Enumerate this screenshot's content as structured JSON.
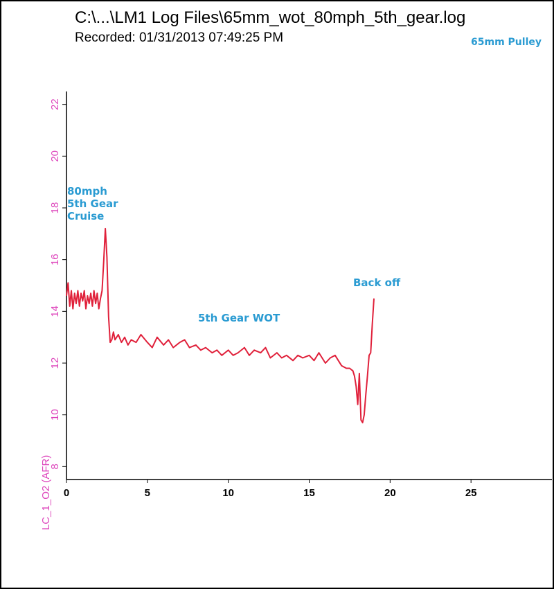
{
  "header": {
    "title": "C:\\...\\LM1 Log Files\\65mm_wot_80mph_5th_gear.log",
    "recorded": "Recorded: 01/31/2013 07:49:25 PM"
  },
  "annotations": {
    "pulley": "65mm Pulley",
    "cruise_line1": "80mph",
    "cruise_line2": "5th Gear",
    "cruise_line3": "Cruise",
    "wot": "5th Gear WOT",
    "back_off": "Back off"
  },
  "colors": {
    "series": "#e0203a",
    "axis_labels": "#dd44bb",
    "annotation": "#2a9bd2"
  },
  "chart_data": {
    "type": "line",
    "title": "",
    "xlabel": "",
    "ylabel": "LC_1_O2 (AFR)",
    "xlim": [
      0,
      30
    ],
    "ylim": [
      7.5,
      22.5
    ],
    "x_ticks": [
      0,
      5,
      10,
      15,
      20,
      25
    ],
    "y_ticks": [
      8,
      10,
      12,
      14,
      16,
      18,
      20,
      22
    ],
    "grid": false,
    "series": [
      {
        "x": [
          0,
          0.1,
          0.2,
          0.3,
          0.4,
          0.5,
          0.6,
          0.7,
          0.8,
          0.9,
          1.0,
          1.1,
          1.2,
          1.3,
          1.4,
          1.5,
          1.6,
          1.7,
          1.8,
          1.9,
          2.0,
          2.1,
          2.2,
          2.3,
          2.4,
          2.5,
          2.6,
          2.7,
          2.8,
          2.9,
          3.0,
          3.2,
          3.4,
          3.6,
          3.8,
          4.0,
          4.3,
          4.6,
          5.0,
          5.3,
          5.6,
          6.0,
          6.3,
          6.6,
          7.0,
          7.3,
          7.6,
          8.0,
          8.3,
          8.6,
          9.0,
          9.3,
          9.6,
          10.0,
          10.3,
          10.6,
          11.0,
          11.3,
          11.6,
          12.0,
          12.3,
          12.6,
          13.0,
          13.3,
          13.6,
          14.0,
          14.3,
          14.6,
          15.0,
          15.3,
          15.6,
          16.0,
          16.3,
          16.6,
          17.0,
          17.3,
          17.5,
          17.7,
          17.8,
          17.9,
          18.0,
          18.1,
          18.2,
          18.3,
          18.4,
          18.5,
          18.6,
          18.7,
          18.8,
          18.9,
          19.0
        ],
        "values": [
          14.6,
          15.1,
          14.2,
          14.8,
          14.1,
          14.7,
          14.3,
          14.8,
          14.2,
          14.7,
          14.4,
          14.8,
          14.1,
          14.6,
          14.3,
          14.7,
          14.2,
          14.8,
          14.3,
          14.7,
          14.1,
          14.5,
          14.8,
          15.9,
          17.2,
          16.1,
          13.8,
          12.8,
          12.9,
          13.2,
          12.9,
          13.1,
          12.8,
          13.0,
          12.7,
          12.9,
          12.8,
          13.1,
          12.8,
          12.6,
          13.0,
          12.7,
          12.9,
          12.6,
          12.8,
          12.9,
          12.6,
          12.7,
          12.5,
          12.6,
          12.4,
          12.5,
          12.3,
          12.5,
          12.3,
          12.4,
          12.6,
          12.3,
          12.5,
          12.4,
          12.6,
          12.2,
          12.4,
          12.2,
          12.3,
          12.1,
          12.3,
          12.2,
          12.3,
          12.1,
          12.4,
          12.0,
          12.2,
          12.3,
          11.9,
          11.8,
          11.8,
          11.7,
          11.5,
          11.1,
          10.4,
          11.6,
          9.8,
          9.7,
          10.0,
          10.8,
          11.5,
          12.3,
          12.4,
          13.5,
          14.5
        ]
      }
    ]
  }
}
